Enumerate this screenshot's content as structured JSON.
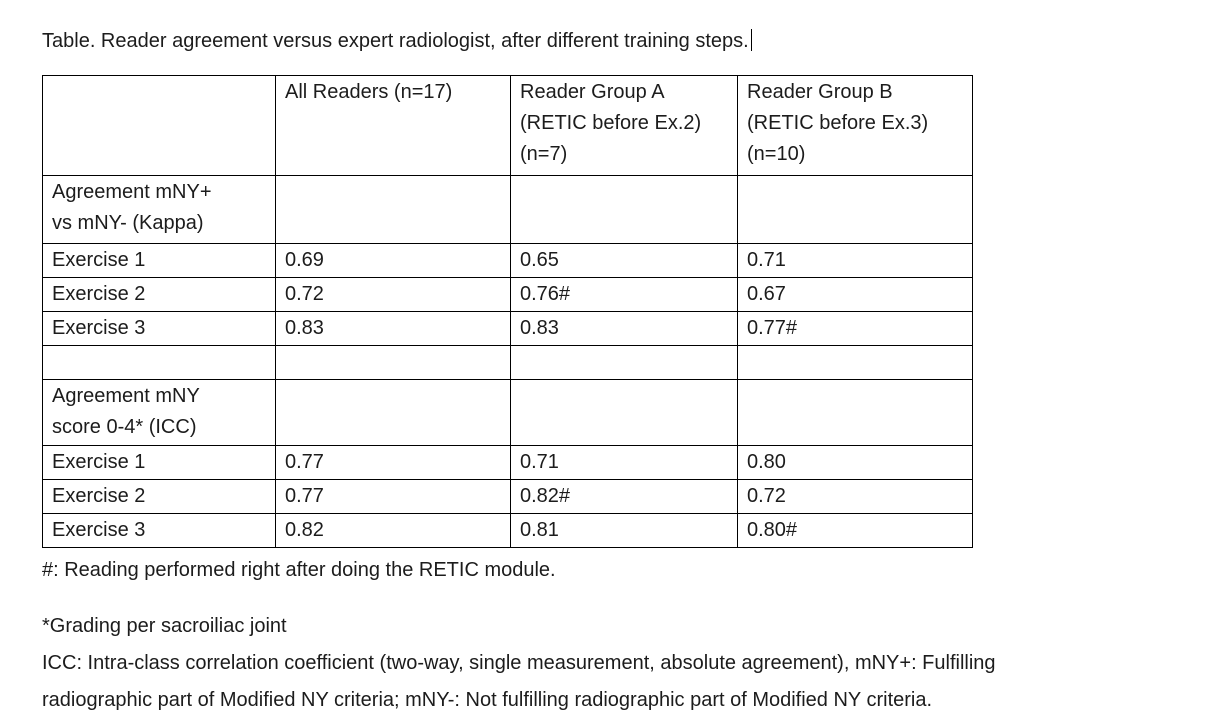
{
  "document": {
    "caption": "Table. Reader agreement versus expert radiologist, after different training steps.",
    "table": {
      "columns": [
        "",
        "All Readers (n=17)",
        "Reader Group A\n(RETIC before Ex.2)\n(n=7)",
        "Reader Group B\n(RETIC before Ex.3)\n(n=10)"
      ],
      "rows": [
        [
          "Agreement mNY+\nvs mNY- (Kappa)",
          "",
          "",
          ""
        ],
        [
          "Exercise 1",
          "0.69",
          "0.65",
          "0.71"
        ],
        [
          "Exercise 2",
          "0.72",
          "0.76#",
          "0.67"
        ],
        [
          "Exercise 3",
          "0.83",
          "0.83",
          "0.77#"
        ],
        [
          "",
          "",
          "",
          ""
        ],
        [
          "Agreement mNY\nscore 0-4* (ICC)",
          "",
          "",
          ""
        ],
        [
          "Exercise 1",
          "0.77",
          "0.71",
          "0.80"
        ],
        [
          "Exercise 2",
          "0.77",
          "0.82#",
          "0.72"
        ],
        [
          "Exercise 3",
          "0.82",
          "0.81",
          "0.80#"
        ]
      ]
    },
    "notes": {
      "hash": "#: Reading performed right after doing the RETIC module.",
      "asterisk": "*Grading per sacroiliac joint",
      "icc": "ICC: Intra-class correlation coefficient (two-way, single measurement, absolute agreement), mNY+: Fulfilling\nradiographic part of Modified NY criteria; mNY-: Not fulfilling radiographic part of Modified NY criteria."
    },
    "colors": {
      "text": "#1c1c1c",
      "border": "#000000",
      "background": "#ffffff"
    }
  }
}
